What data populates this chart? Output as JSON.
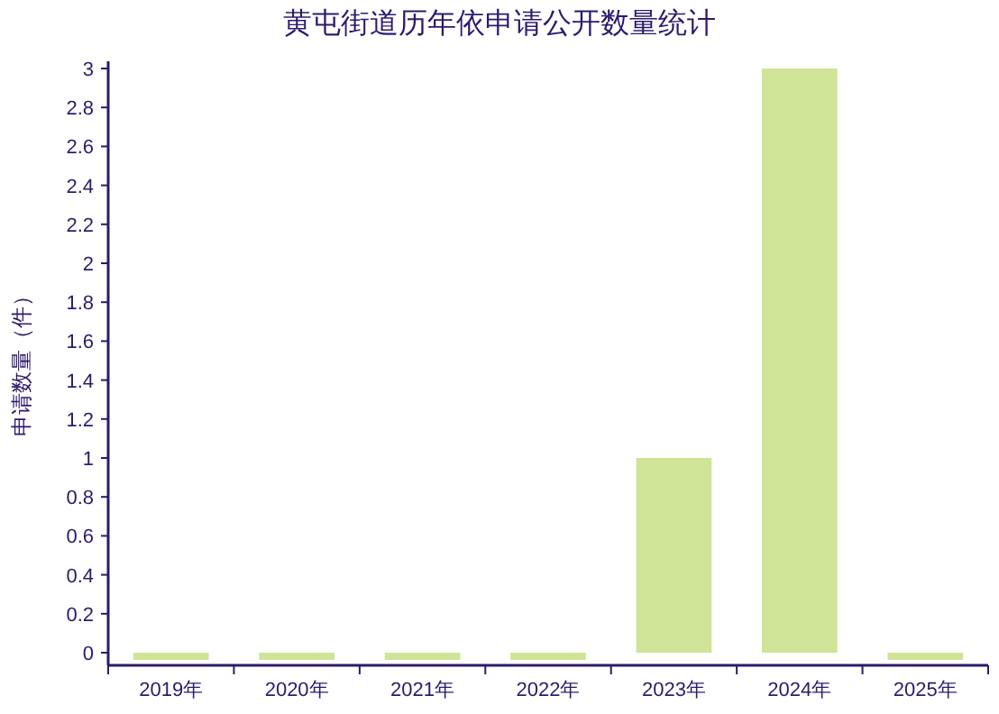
{
  "chart_data": {
    "type": "bar",
    "title": "黄屯街道历年依申请公开数量统计",
    "ylabel": "申请数量（件）",
    "categories": [
      "2019年",
      "2020年",
      "2021年",
      "2022年",
      "2023年",
      "2024年",
      "2025年"
    ],
    "values": [
      0,
      0,
      0,
      0,
      1,
      3,
      0
    ],
    "color": "#cfe497",
    "ylim": [
      0,
      3
    ],
    "yticks": [
      0,
      0.2,
      0.4,
      0.6,
      0.8,
      1,
      1.2,
      1.4,
      1.6,
      1.8,
      2,
      2.2,
      2.4,
      2.6,
      2.8,
      3
    ],
    "grid": false
  }
}
